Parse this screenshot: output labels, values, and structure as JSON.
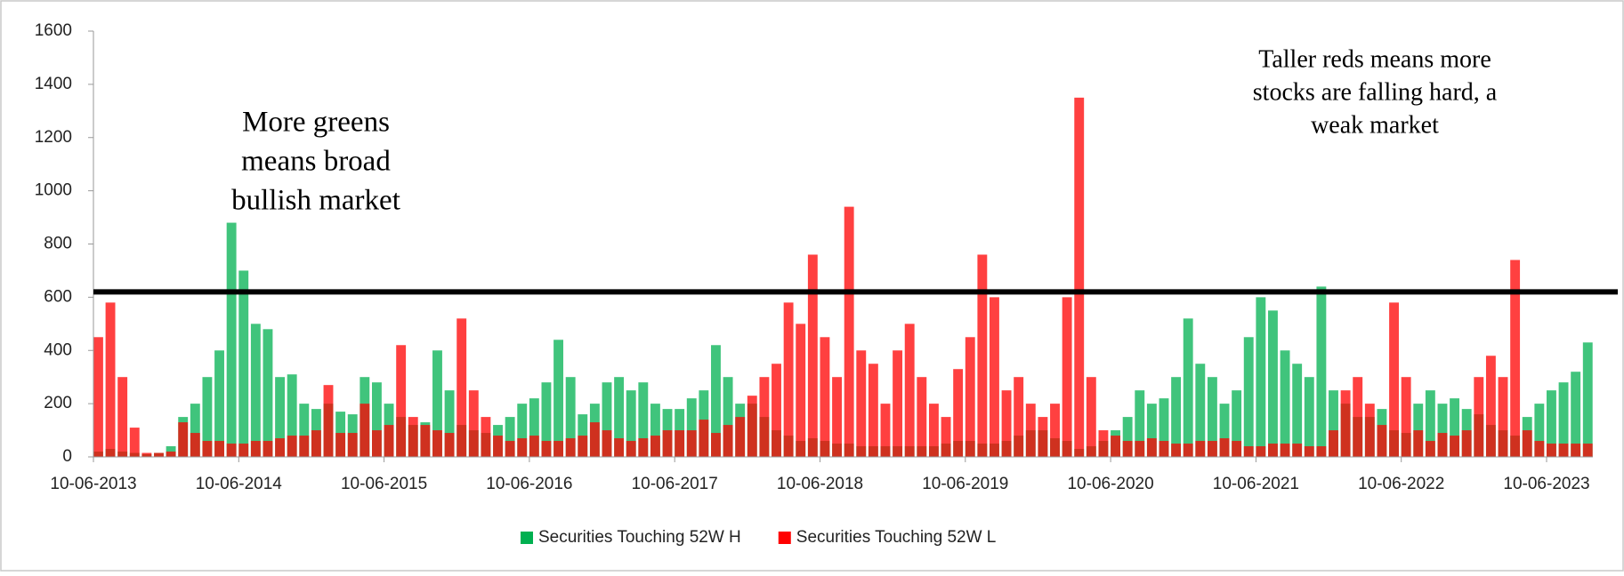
{
  "chart_data": {
    "type": "bar",
    "categories": [
      "10-06-2013",
      null,
      null,
      null,
      null,
      null,
      null,
      null,
      null,
      null,
      null,
      null,
      "10-06-2014",
      null,
      null,
      null,
      null,
      null,
      null,
      null,
      null,
      null,
      null,
      null,
      "10-06-2015",
      null,
      null,
      null,
      null,
      null,
      null,
      null,
      null,
      null,
      null,
      null,
      "10-06-2016",
      null,
      null,
      null,
      null,
      null,
      null,
      null,
      null,
      null,
      null,
      null,
      "10-06-2017",
      null,
      null,
      null,
      null,
      null,
      null,
      null,
      null,
      null,
      null,
      null,
      "10-06-2018",
      null,
      null,
      null,
      null,
      null,
      null,
      null,
      null,
      null,
      null,
      null,
      "10-06-2019",
      null,
      null,
      null,
      null,
      null,
      null,
      null,
      null,
      null,
      null,
      null,
      "10-06-2020",
      null,
      null,
      null,
      null,
      null,
      null,
      null,
      null,
      null,
      null,
      null,
      "10-06-2021",
      null,
      null,
      null,
      null,
      null,
      null,
      null,
      null,
      null,
      null,
      null,
      "10-06-2022",
      null,
      null,
      null,
      null,
      null,
      null,
      null,
      null,
      null,
      null,
      null,
      "10-06-2023",
      null,
      null,
      null
    ],
    "series": [
      {
        "name": "Securities Touching 52W H",
        "color": "#00b050",
        "values": [
          20,
          30,
          20,
          15,
          10,
          15,
          40,
          150,
          200,
          300,
          400,
          880,
          700,
          500,
          480,
          300,
          310,
          200,
          180,
          200,
          170,
          160,
          300,
          280,
          200,
          150,
          120,
          130,
          400,
          250,
          120,
          100,
          90,
          120,
          150,
          200,
          220,
          280,
          440,
          300,
          160,
          200,
          280,
          300,
          250,
          280,
          200,
          180,
          180,
          220,
          250,
          420,
          300,
          200,
          200,
          150,
          100,
          80,
          60,
          70,
          60,
          50,
          50,
          40,
          40,
          40,
          40,
          40,
          40,
          40,
          50,
          60,
          60,
          50,
          50,
          60,
          80,
          100,
          100,
          70,
          60,
          30,
          40,
          60,
          100,
          150,
          250,
          200,
          220,
          300,
          520,
          350,
          300,
          200,
          250,
          450,
          600,
          550,
          400,
          350,
          300,
          640,
          250,
          200,
          150,
          150,
          180,
          100,
          90,
          200,
          250,
          200,
          220,
          180,
          160,
          120,
          100,
          80,
          150,
          200,
          250,
          280,
          320,
          430
        ]
      },
      {
        "name": "Securities Touching 52W L",
        "color": "#ff0000",
        "values": [
          450,
          580,
          300,
          110,
          15,
          15,
          20,
          130,
          90,
          60,
          60,
          50,
          50,
          60,
          60,
          70,
          80,
          80,
          100,
          270,
          90,
          90,
          200,
          100,
          120,
          420,
          150,
          120,
          100,
          90,
          520,
          250,
          150,
          80,
          60,
          70,
          80,
          60,
          60,
          70,
          80,
          130,
          100,
          70,
          60,
          70,
          80,
          100,
          100,
          100,
          140,
          90,
          120,
          150,
          230,
          300,
          350,
          580,
          500,
          760,
          450,
          300,
          940,
          400,
          350,
          200,
          400,
          500,
          300,
          200,
          150,
          330,
          450,
          760,
          600,
          250,
          300,
          200,
          150,
          200,
          600,
          1350,
          300,
          100,
          80,
          60,
          60,
          70,
          60,
          50,
          50,
          60,
          60,
          70,
          60,
          40,
          40,
          50,
          50,
          50,
          40,
          40,
          100,
          250,
          300,
          200,
          120,
          580,
          300,
          100,
          60,
          90,
          80,
          100,
          300,
          380,
          300,
          740,
          100,
          60,
          50,
          50,
          50,
          50
        ]
      }
    ],
    "ylim": [
      0,
      1600
    ],
    "yticks": [
      0,
      200,
      400,
      600,
      800,
      1000,
      1200,
      1400,
      1600
    ],
    "hline": 620,
    "annotations": [
      {
        "lines": [
          "More greens",
          "means broad",
          "bullish market"
        ]
      },
      {
        "lines": [
          "Taller reds means more",
          "stocks are falling hard, a",
          "weak market"
        ]
      }
    ],
    "legend": "bottom"
  }
}
